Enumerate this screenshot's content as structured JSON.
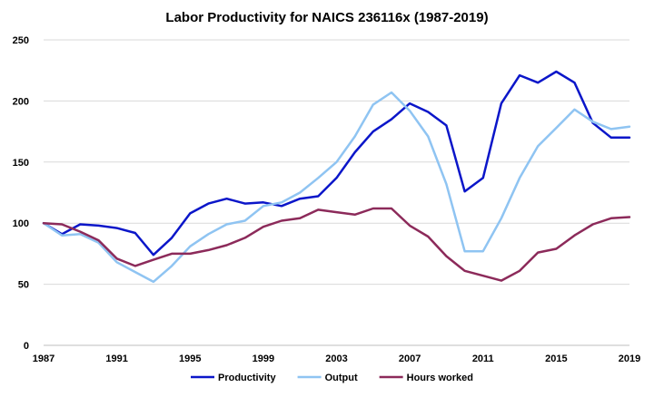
{
  "chart_data": {
    "type": "line",
    "title": "Labor Productivity for NAICS 236116x  (1987-2019)",
    "xlabel": "",
    "ylabel": "",
    "x": [
      1987,
      1988,
      1989,
      1990,
      1991,
      1992,
      1993,
      1994,
      1995,
      1996,
      1997,
      1998,
      1999,
      2000,
      2001,
      2002,
      2003,
      2004,
      2005,
      2006,
      2007,
      2008,
      2009,
      2010,
      2011,
      2012,
      2013,
      2014,
      2015,
      2016,
      2017,
      2018,
      2019
    ],
    "x_ticks": [
      1987,
      1991,
      1995,
      1999,
      2003,
      2007,
      2011,
      2015,
      2019
    ],
    "ylim": [
      0,
      250
    ],
    "y_ticks": [
      0,
      50,
      100,
      150,
      200,
      250
    ],
    "grid": true,
    "legend_position": "bottom",
    "series": [
      {
        "name": "Productivity",
        "color": "#0b16c9",
        "values": [
          100,
          91,
          99,
          98,
          96,
          92,
          74,
          88,
          108,
          116,
          120,
          116,
          117,
          114,
          120,
          122,
          137,
          158,
          175,
          185,
          198,
          191,
          180,
          126,
          137,
          198,
          221,
          215,
          224,
          215,
          182,
          170,
          170
        ]
      },
      {
        "name": "Output",
        "color": "#8fc4f2",
        "values": [
          100,
          90,
          91,
          84,
          68,
          60,
          52,
          65,
          81,
          91,
          99,
          102,
          114,
          117,
          125,
          137,
          150,
          171,
          197,
          207,
          192,
          171,
          132,
          77,
          77,
          104,
          137,
          163,
          178,
          193,
          183,
          177,
          179
        ]
      },
      {
        "name": "Hours worked",
        "color": "#8c2a5a",
        "values": [
          100,
          99,
          93,
          86,
          71,
          65,
          70,
          75,
          75,
          78,
          82,
          88,
          97,
          102,
          104,
          111,
          109,
          107,
          112,
          112,
          98,
          89,
          73,
          61,
          57,
          53,
          61,
          76,
          79,
          90,
          99,
          104,
          105
        ]
      }
    ]
  }
}
